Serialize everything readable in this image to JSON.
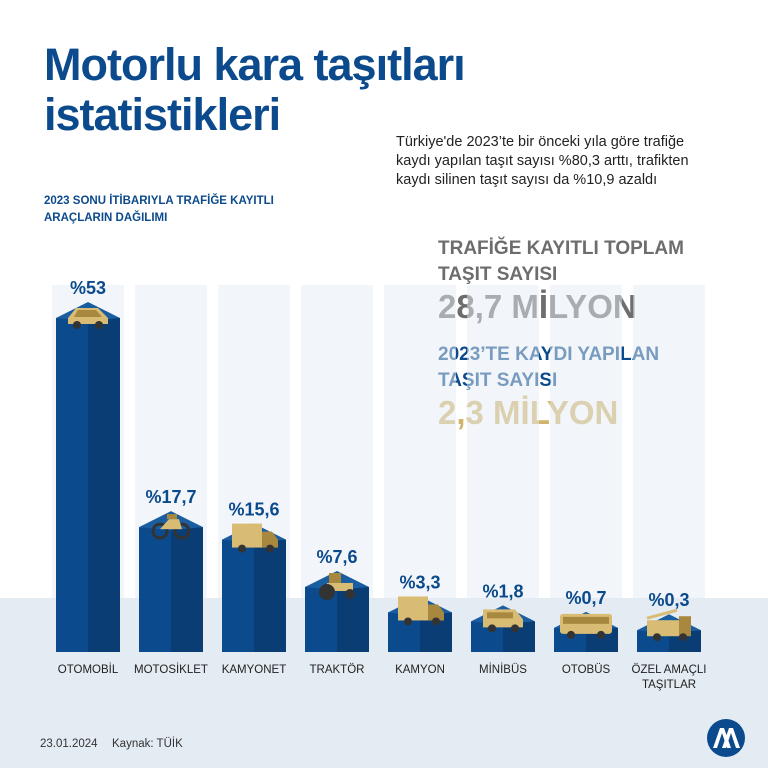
{
  "header": {
    "title_line1": "Motorlu kara taşıtları",
    "title_line2": "istatistikleri",
    "subtitle_line1": "Türkiye'de 2023’te bir önceki yıla göre trafiğe",
    "subtitle_line2": "kaydı yapılan taşıt sayısı %80,3 arttı, trafikten",
    "subtitle_line3": "kaydı silinen taşıt sayısı da %10,9 azaldı"
  },
  "section_label_line1": "2023 SONU İTİBARIYLA TRAFİĞE KAYITLI",
  "section_label_line2": "ARAÇLARIN DAĞILIMI",
  "stats": {
    "total_label_line1": "TRAFİĞE KAYITLI TOPLAM",
    "total_label_line2": "TAŞIT SAYISI",
    "total_value": "28,7 MİLYON",
    "new_label_line1": "2023’TE KAYDI YAPILAN",
    "new_label_line2": "TAŞIT SAYISI",
    "new_value": "2,3 MİLYON"
  },
  "chart_data": {
    "type": "bar",
    "categories": [
      "OTOMOBİL",
      "MOTOSİKLET",
      "KAMYONET",
      "TRAKTÖR",
      "KAMYON",
      "MİNİBÜS",
      "OTOBÜS",
      "ÖZEL AMAÇLI TAŞITLAR"
    ],
    "values": [
      53,
      17.7,
      15.6,
      7.6,
      3.3,
      1.8,
      0.7,
      0.3
    ],
    "data_labels": [
      "%53",
      "%17,7",
      "%15,6",
      "%7,6",
      "%3,3",
      "%1,8",
      "%0,7",
      "%0,3"
    ],
    "icons": [
      "car-icon",
      "motorcycle-icon",
      "van-icon",
      "tractor-icon",
      "truck-icon",
      "minibus-icon",
      "bus-icon",
      "special-vehicle-icon"
    ],
    "bar_color": "#0b4a8c",
    "bar_top_color": "#1b5da1",
    "icon_color": "#d9bc74"
  },
  "footer": {
    "date": "23.01.2024",
    "source": "Kaynak: TÜİK",
    "logo_text": "AA"
  }
}
